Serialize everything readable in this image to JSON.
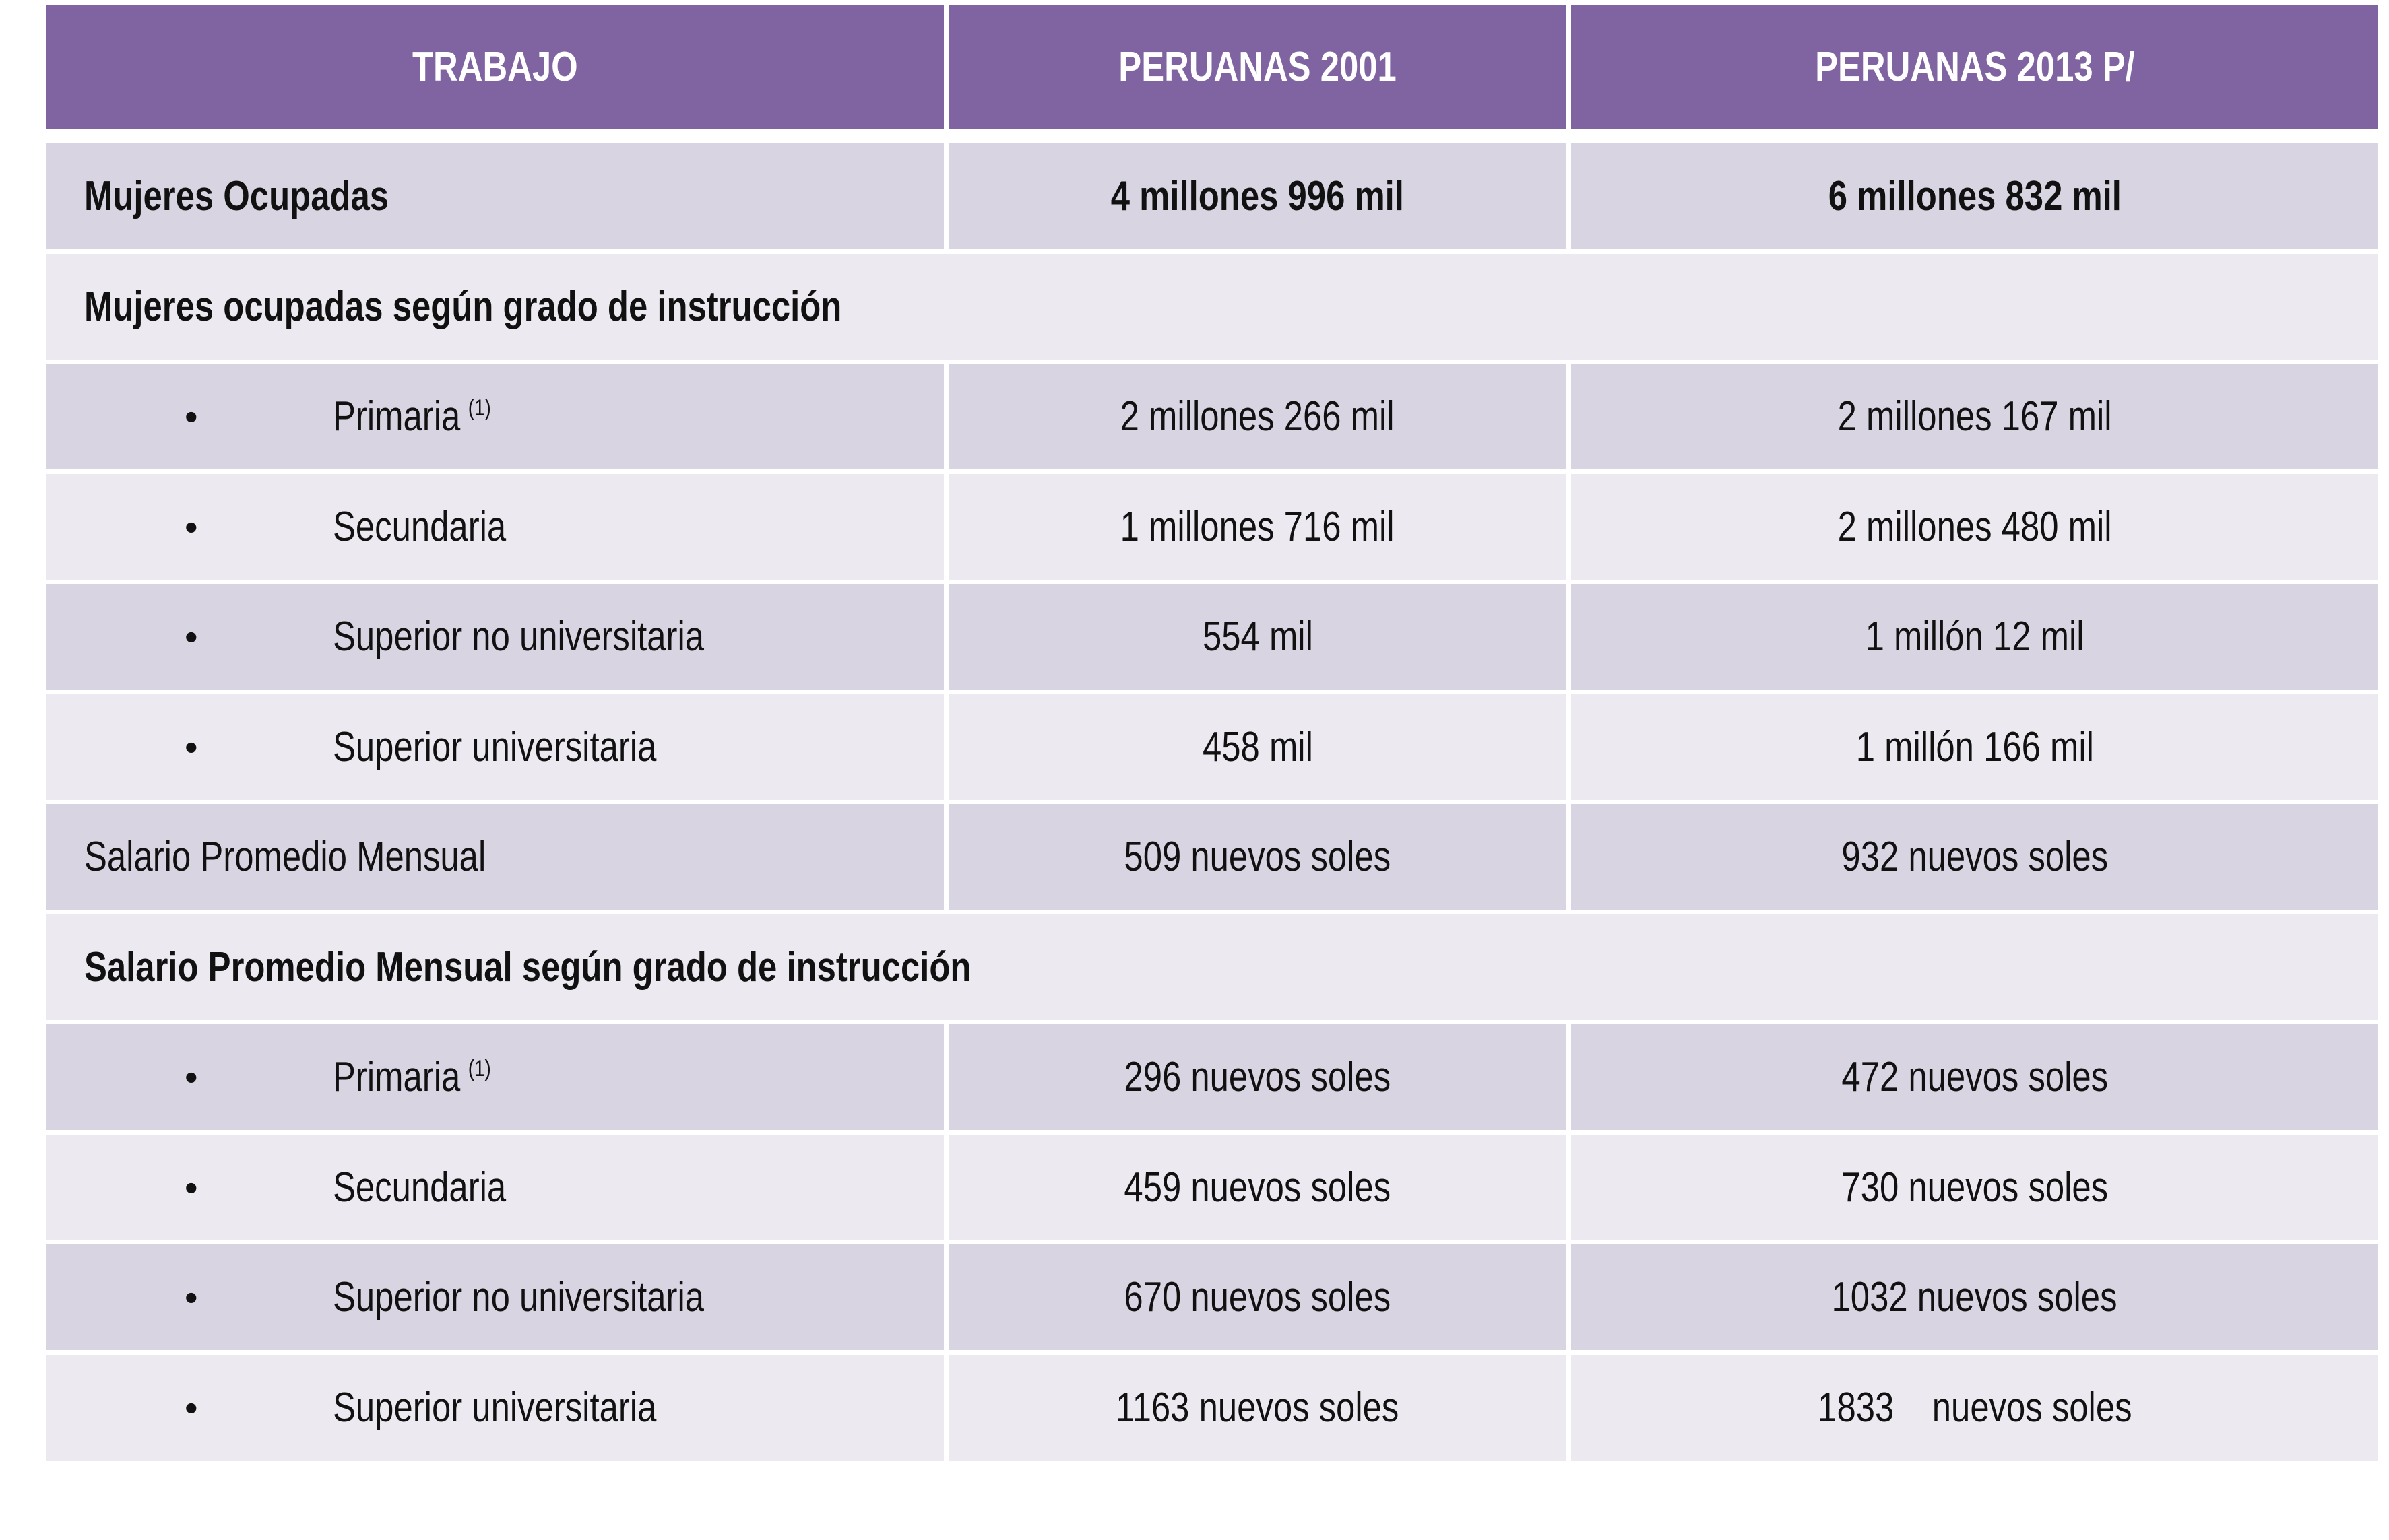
{
  "table": {
    "header": [
      "TRABAJO",
      "PERUANAS 2001",
      "PERUANAS 2013 P/"
    ],
    "rows": [
      {
        "label": "Mujeres Ocupadas",
        "cells": [
          "4 millones 996 mil",
          "6 millones 832 mil"
        ]
      },
      {
        "label": "Mujeres ocupadas según grado de instrucción"
      },
      {
        "label": "Primaria",
        "note": "(1)",
        "cells": [
          "2 millones 266 mil",
          "2 millones 167 mil"
        ]
      },
      {
        "label": "Secundaria",
        "cells": [
          "1 millones 716 mil",
          "2 millones 480 mil"
        ]
      },
      {
        "label": "Superior no universitaria",
        "cells": [
          "554 mil",
          "1 millón 12 mil"
        ]
      },
      {
        "label": "Superior universitaria",
        "cells": [
          "458 mil",
          "1 millón 166 mil"
        ]
      },
      {
        "label": "Salario Promedio Mensual",
        "cells": [
          "509 nuevos soles",
          "932 nuevos soles"
        ]
      },
      {
        "label": "Salario Promedio Mensual según grado de instrucción"
      },
      {
        "label": "Primaria",
        "note": "(1)",
        "cells": [
          "296 nuevos soles",
          "472 nuevos soles"
        ]
      },
      {
        "label": "Secundaria",
        "cells": [
          "459 nuevos soles",
          "730 nuevos soles"
        ]
      },
      {
        "label": "Superior no universitaria",
        "cells": [
          "670 nuevos soles",
          "1032 nuevos soles"
        ]
      },
      {
        "label": "Superior universitaria",
        "cells": [
          "1163 nuevos soles",
          "1833    nuevos soles"
        ]
      }
    ]
  }
}
